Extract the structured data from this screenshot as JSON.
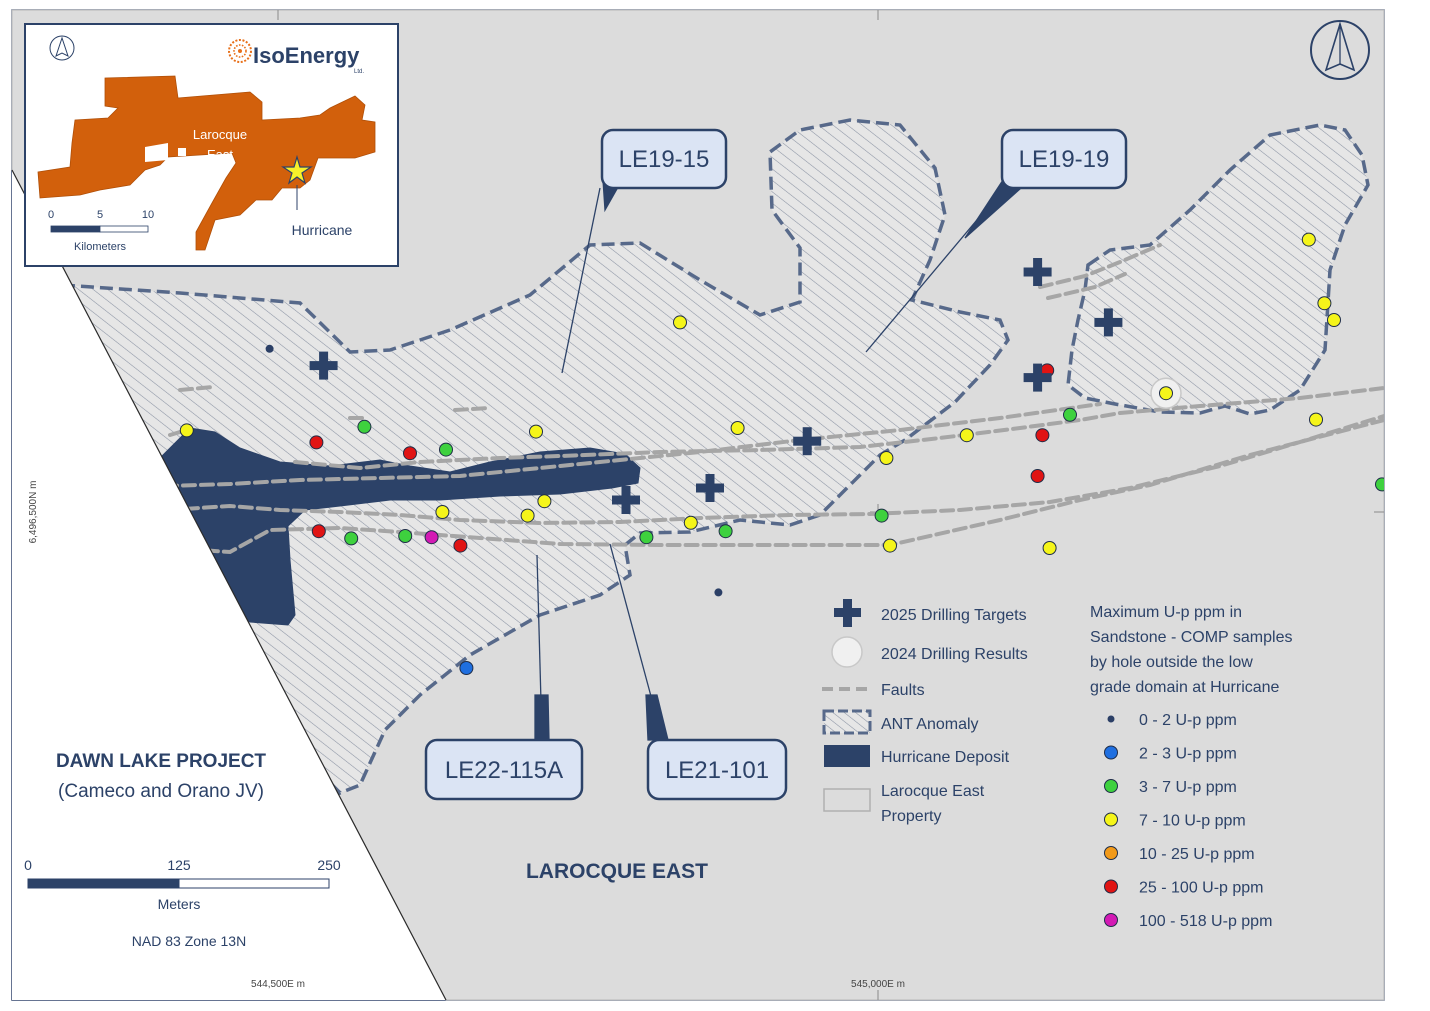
{
  "map": {
    "project_title": "DAWN LAKE PROJECT",
    "project_subtitle": "(Cameco and Orano JV)",
    "property_label": "LAROCQUE EAST",
    "projection": "NAD 83 Zone 13N",
    "coord_y_label": "6,496,500N m",
    "coord_x_label_1": "544,500E m",
    "coord_x_label_2": "545,000E m"
  },
  "scale_bar": {
    "ticks": [
      "0",
      "125",
      "250"
    ],
    "unit": "Meters"
  },
  "callouts": [
    {
      "label": "LE19-15"
    },
    {
      "label": "LE19-19"
    },
    {
      "label": "LE22-115A"
    },
    {
      "label": "LE21-101"
    }
  ],
  "legend": {
    "items": [
      {
        "symbol": "cross",
        "label": "2025 Drilling Targets"
      },
      {
        "symbol": "halo",
        "label": "2024 Drilling Results"
      },
      {
        "symbol": "dash",
        "label": "Faults"
      },
      {
        "symbol": "hatch",
        "label": "ANT Anomaly"
      },
      {
        "symbol": "deposit",
        "label": "Hurricane Deposit"
      },
      {
        "symbol": "property",
        "label_line1": "Larocque East",
        "label_line2": "Property"
      }
    ],
    "grade_title_lines": [
      "Maximum U-p ppm in",
      "Sandstone - COMP samples",
      "by hole outside the low",
      "grade domain at Hurricane"
    ],
    "grade_classes": [
      {
        "label": "0 - 2 U-p ppm",
        "color": "#2b3f66"
      },
      {
        "label": "2 - 3 U-p ppm",
        "color": "#1f6fe0"
      },
      {
        "label": "3 - 7 U-p ppm",
        "color": "#3ed13e"
      },
      {
        "label": "7 - 10 U-p ppm",
        "color": "#f5f51a"
      },
      {
        "label": "10 - 25 U-p ppm",
        "color": "#f29a1a"
      },
      {
        "label": "25 - 100 U-p ppm",
        "color": "#e01414"
      },
      {
        "label": "100 - 518 U-p ppm",
        "color": "#d31ab4"
      }
    ]
  },
  "inset": {
    "logo_text": "IsoEnergy",
    "logo_suffix": "Ltd.",
    "area_label_line1": "Larocque",
    "area_label_line2": "East",
    "point_label": "Hurricane",
    "scale_ticks": [
      "0",
      "5",
      "10"
    ],
    "scale_unit": "Kilometers"
  },
  "drill_holes": [
    {
      "grade": "0 - 2 U-p ppm",
      "lon": 544493,
      "lat": 6496636
    },
    {
      "grade": "0 - 2 U-p ppm",
      "lon": 544867,
      "lat": 6496433
    },
    {
      "grade": "2 - 3 U-p ppm",
      "lon": 544657,
      "lat": 6496370
    },
    {
      "grade": "3 - 7 U-p ppm",
      "lon": 544572,
      "lat": 6496571
    },
    {
      "grade": "3 - 7 U-p ppm",
      "lon": 544640,
      "lat": 6496552
    },
    {
      "grade": "3 - 7 U-p ppm",
      "lon": 544561,
      "lat": 6496478
    },
    {
      "grade": "3 - 7 U-p ppm",
      "lon": 544606,
      "lat": 6496480
    },
    {
      "grade": "3 - 7 U-p ppm",
      "lon": 544807,
      "lat": 6496479
    },
    {
      "grade": "3 - 7 U-p ppm",
      "lon": 544873,
      "lat": 6496484
    },
    {
      "grade": "3 - 7 U-p ppm",
      "lon": 545003,
      "lat": 6496497
    },
    {
      "grade": "3 - 7 U-p ppm",
      "lon": 545160,
      "lat": 6496581
    },
    {
      "grade": "3 - 7 U-p ppm",
      "lon": 545420,
      "lat": 6496523
    },
    {
      "grade": "7 - 10 U-p ppm",
      "lon": 544424,
      "lat": 6496568
    },
    {
      "grade": "7 - 10 U-p ppm",
      "lon": 544637,
      "lat": 6496500
    },
    {
      "grade": "7 - 10 U-p ppm",
      "lon": 544715,
      "lat": 6496567
    },
    {
      "grade": "7 - 10 U-p ppm",
      "lon": 544722,
      "lat": 6496509
    },
    {
      "grade": "7 - 10 U-p ppm",
      "lon": 544708,
      "lat": 6496497
    },
    {
      "grade": "7 - 10 U-p ppm",
      "lon": 544835,
      "lat": 6496658
    },
    {
      "grade": "7 - 10 U-p ppm",
      "lon": 544844,
      "lat": 6496491
    },
    {
      "grade": "7 - 10 U-p ppm",
      "lon": 544883,
      "lat": 6496570
    },
    {
      "grade": "7 - 10 U-p ppm",
      "lon": 545007,
      "lat": 6496545
    },
    {
      "grade": "7 - 10 U-p ppm",
      "lon": 545010,
      "lat": 6496472
    },
    {
      "grade": "7 - 10 U-p ppm",
      "lon": 545074,
      "lat": 6496564
    },
    {
      "grade": "7 - 10 U-p ppm",
      "lon": 545143,
      "lat": 6496470
    },
    {
      "grade": "7 - 10 U-p ppm",
      "lon": 545359,
      "lat": 6496727
    },
    {
      "grade": "7 - 10 U-p ppm",
      "lon": 545365,
      "lat": 6496577
    },
    {
      "grade": "7 - 10 U-p ppm",
      "lon": 545372,
      "lat": 6496674
    },
    {
      "grade": "7 - 10 U-p ppm",
      "lon": 545380,
      "lat": 6496660
    },
    {
      "grade": "25 - 100 U-p ppm",
      "lon": 544532,
      "lat": 6496558
    },
    {
      "grade": "25 - 100 U-p ppm",
      "lon": 544534,
      "lat": 6496484
    },
    {
      "grade": "25 - 100 U-p ppm",
      "lon": 544610,
      "lat": 6496549
    },
    {
      "grade": "25 - 100 U-p ppm",
      "lon": 544652,
      "lat": 6496472
    },
    {
      "grade": "25 - 100 U-p ppm",
      "lon": 545141,
      "lat": 6496618
    },
    {
      "grade": "25 - 100 U-p ppm",
      "lon": 545137,
      "lat": 6496564
    },
    {
      "grade": "25 - 100 U-p ppm",
      "lon": 545133,
      "lat": 6496530
    },
    {
      "grade": "100 - 518 U-p ppm",
      "lon": 544628,
      "lat": 6496479
    }
  ],
  "drill_results_2024": [
    {
      "grade": "7 - 10 U-p ppm",
      "lon": 545240,
      "lat": 6496599
    },
    {
      "grade": "7 - 10 U-p ppm",
      "lon": 545602,
      "lat": 6496766
    },
    {
      "grade": "7 - 10 U-p ppm",
      "lon": 545440,
      "lat": 6496683
    },
    {
      "grade": "7 - 10 U-p ppm",
      "lon": 545487,
      "lat": 6496699
    },
    {
      "grade": "7 - 10 U-p ppm",
      "lon": 545495,
      "lat": 6496691
    },
    {
      "grade": "7 - 10 U-p ppm",
      "lon": 545502,
      "lat": 6496665
    },
    {
      "grade": "7 - 10 U-p ppm",
      "lon": 545535,
      "lat": 6496683
    },
    {
      "grade": "7 - 10 U-p ppm",
      "lon": 545492,
      "lat": 6496612
    }
  ],
  "drilling_targets_2025": [
    {
      "lon": 544538,
      "lat": 6496622
    },
    {
      "lon": 544790,
      "lat": 6496510
    },
    {
      "lon": 544860,
      "lat": 6496520
    },
    {
      "lon": 544941,
      "lat": 6496559
    },
    {
      "lon": 545133,
      "lat": 6496700
    },
    {
      "lon": 545133,
      "lat": 6496612
    },
    {
      "lon": 545192,
      "lat": 6496658
    }
  ]
}
